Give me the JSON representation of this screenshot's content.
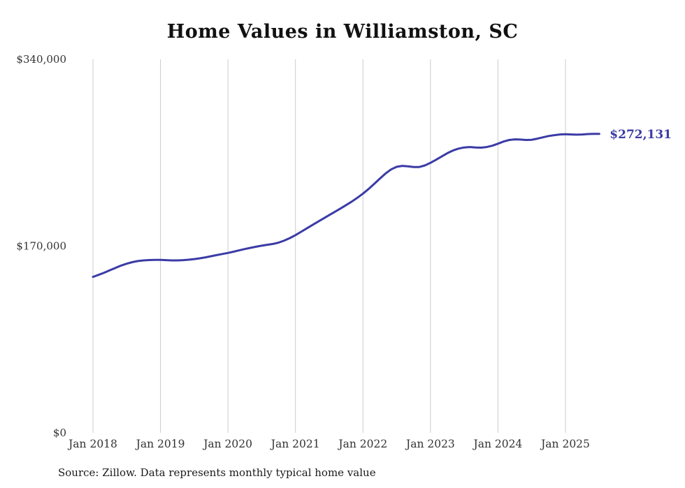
{
  "title": "Home Values in Williamston, SC",
  "source": "Source: Zillow. Data represents monthly typical home value",
  "end_label": "$272,131",
  "colors": {
    "line": "#3b3ba6",
    "end_label": "#3b3ba6",
    "grid": "#cccccc",
    "tick_text": "#333333",
    "title_text": "#111111"
  },
  "chart_data": {
    "type": "line",
    "title": "Home Values in Williamston, SC",
    "xlabel": "",
    "ylabel": "",
    "ylim": [
      0,
      340000
    ],
    "grid": "vertical-only",
    "legend": "none",
    "yticks": [
      {
        "value": 0,
        "label": "$0"
      },
      {
        "value": 170000,
        "label": "$170,000"
      },
      {
        "value": 340000,
        "label": "$340,000"
      }
    ],
    "xticks": [
      {
        "x": "2018-01",
        "label": "Jan 2018"
      },
      {
        "x": "2019-01",
        "label": "Jan 2019"
      },
      {
        "x": "2020-01",
        "label": "Jan 2020"
      },
      {
        "x": "2021-01",
        "label": "Jan 2021"
      },
      {
        "x": "2022-01",
        "label": "Jan 2022"
      },
      {
        "x": "2023-01",
        "label": "Jan 2023"
      },
      {
        "x": "2024-01",
        "label": "Jan 2024"
      },
      {
        "x": "2025-01",
        "label": "Jan 2025"
      }
    ],
    "x": [
      "2018-01",
      "2018-02",
      "2018-03",
      "2018-04",
      "2018-05",
      "2018-06",
      "2018-07",
      "2018-08",
      "2018-09",
      "2018-10",
      "2018-11",
      "2018-12",
      "2019-01",
      "2019-02",
      "2019-03",
      "2019-04",
      "2019-05",
      "2019-06",
      "2019-07",
      "2019-08",
      "2019-09",
      "2019-10",
      "2019-11",
      "2019-12",
      "2020-01",
      "2020-02",
      "2020-03",
      "2020-04",
      "2020-05",
      "2020-06",
      "2020-07",
      "2020-08",
      "2020-09",
      "2020-10",
      "2020-11",
      "2020-12",
      "2021-01",
      "2021-02",
      "2021-03",
      "2021-04",
      "2021-05",
      "2021-06",
      "2021-07",
      "2021-08",
      "2021-09",
      "2021-10",
      "2021-11",
      "2021-12",
      "2022-01",
      "2022-02",
      "2022-03",
      "2022-04",
      "2022-05",
      "2022-06",
      "2022-07",
      "2022-08",
      "2022-09",
      "2022-10",
      "2022-11",
      "2022-12",
      "2023-01",
      "2023-02",
      "2023-03",
      "2023-04",
      "2023-05",
      "2023-06",
      "2023-07",
      "2023-08",
      "2023-09",
      "2023-10",
      "2023-11",
      "2023-12",
      "2024-01",
      "2024-02",
      "2024-03",
      "2024-04",
      "2024-05",
      "2024-06",
      "2024-07",
      "2024-08",
      "2024-09",
      "2024-10",
      "2024-11",
      "2024-12",
      "2025-01",
      "2025-02",
      "2025-03",
      "2025-04",
      "2025-05",
      "2025-06",
      "2025-07"
    ],
    "values": [
      142000,
      143800,
      145800,
      148000,
      150200,
      152300,
      154000,
      155400,
      156400,
      157000,
      157300,
      157400,
      157400,
      157200,
      157000,
      157000,
      157200,
      157600,
      158200,
      158900,
      159800,
      160800,
      161800,
      162800,
      163800,
      164900,
      166100,
      167300,
      168400,
      169400,
      170400,
      171200,
      172000,
      173200,
      175000,
      177300,
      180000,
      183000,
      186100,
      189200,
      192200,
      195200,
      198200,
      201200,
      204200,
      207300,
      210500,
      214000,
      217800,
      222000,
      226600,
      231400,
      236000,
      239800,
      242200,
      243000,
      242600,
      242000,
      242000,
      243400,
      245800,
      248600,
      251600,
      254600,
      257000,
      258800,
      259800,
      260200,
      259800,
      259600,
      260200,
      261400,
      263200,
      265200,
      266600,
      267200,
      267000,
      266600,
      266800,
      267800,
      269000,
      270200,
      271000,
      271600,
      271800,
      271600,
      271400,
      271600,
      272000,
      272200,
      272131
    ],
    "final_value": 272131
  }
}
